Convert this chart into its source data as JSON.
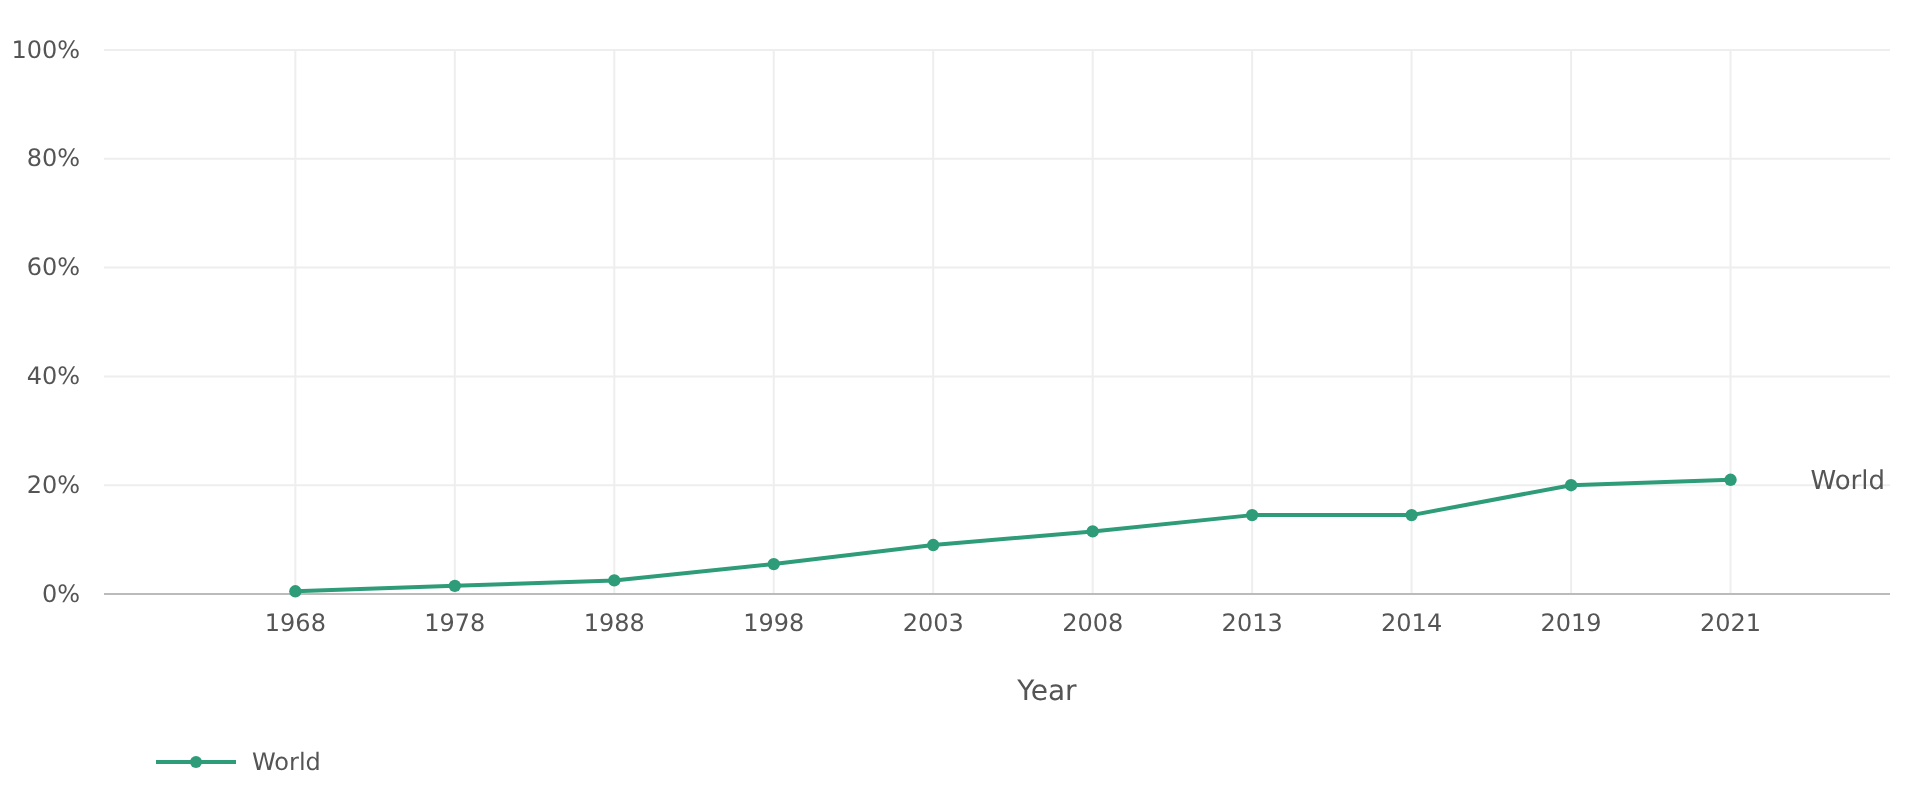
{
  "chart_data": {
    "type": "line",
    "xlabel": "Year",
    "categories": [
      "1968",
      "1978",
      "1988",
      "1998",
      "2003",
      "2008",
      "2013",
      "2014",
      "2019",
      "2021"
    ],
    "series": [
      {
        "name": "World",
        "color": "#2e9c78",
        "values": [
          0.5,
          1.5,
          2.5,
          5.5,
          9,
          11.5,
          14.5,
          14.5,
          20,
          21
        ]
      }
    ],
    "ylim": [
      0,
      100
    ],
    "yticks": [
      {
        "value": 0,
        "label": "0%"
      },
      {
        "value": 20,
        "label": "20%"
      },
      {
        "value": 40,
        "label": "40%"
      },
      {
        "value": 60,
        "label": "60%"
      },
      {
        "value": 80,
        "label": "80%"
      },
      {
        "value": 100,
        "label": "100%"
      }
    ],
    "grid": true,
    "legend": "bottom left",
    "marker": "circle",
    "line_style": "solid"
  }
}
